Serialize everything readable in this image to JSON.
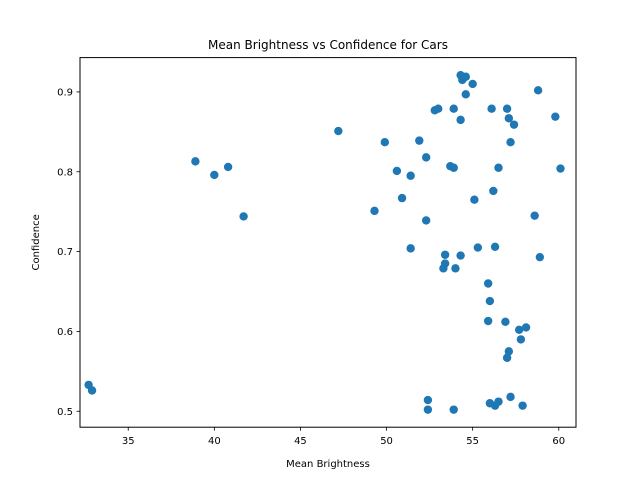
{
  "chart_data": {
    "type": "scatter",
    "title": "Mean Brightness vs Confidence for Cars",
    "xlabel": "Mean Brightness",
    "ylabel": "Confidence",
    "xlim": [
      32.2,
      61.0
    ],
    "ylim": [
      0.48,
      0.943
    ],
    "xticks": [
      35,
      40,
      45,
      50,
      55,
      60
    ],
    "yticks": [
      0.5,
      0.6,
      0.7,
      0.8,
      0.9
    ],
    "ytick_labels": [
      "0.5",
      "0.6",
      "0.7",
      "0.8",
      "0.9"
    ],
    "grid": false,
    "legend": null,
    "marker_color": "#1f77b4",
    "points": [
      {
        "x": 32.7,
        "y": 0.533
      },
      {
        "x": 32.9,
        "y": 0.526
      },
      {
        "x": 38.9,
        "y": 0.813
      },
      {
        "x": 40.0,
        "y": 0.796
      },
      {
        "x": 40.8,
        "y": 0.806
      },
      {
        "x": 41.7,
        "y": 0.744
      },
      {
        "x": 47.2,
        "y": 0.851
      },
      {
        "x": 49.3,
        "y": 0.751
      },
      {
        "x": 49.9,
        "y": 0.837
      },
      {
        "x": 50.6,
        "y": 0.801
      },
      {
        "x": 50.9,
        "y": 0.767
      },
      {
        "x": 51.4,
        "y": 0.795
      },
      {
        "x": 51.4,
        "y": 0.704
      },
      {
        "x": 51.9,
        "y": 0.839
      },
      {
        "x": 52.3,
        "y": 0.818
      },
      {
        "x": 52.3,
        "y": 0.739
      },
      {
        "x": 52.4,
        "y": 0.514
      },
      {
        "x": 52.4,
        "y": 0.502
      },
      {
        "x": 52.8,
        "y": 0.877
      },
      {
        "x": 53.0,
        "y": 0.879
      },
      {
        "x": 53.4,
        "y": 0.696
      },
      {
        "x": 53.4,
        "y": 0.685
      },
      {
        "x": 53.3,
        "y": 0.679
      },
      {
        "x": 53.7,
        "y": 0.807
      },
      {
        "x": 53.9,
        "y": 0.805
      },
      {
        "x": 53.9,
        "y": 0.879
      },
      {
        "x": 54.0,
        "y": 0.679
      },
      {
        "x": 53.9,
        "y": 0.502
      },
      {
        "x": 54.3,
        "y": 0.921
      },
      {
        "x": 54.4,
        "y": 0.915
      },
      {
        "x": 54.6,
        "y": 0.919
      },
      {
        "x": 54.3,
        "y": 0.865
      },
      {
        "x": 54.3,
        "y": 0.695
      },
      {
        "x": 54.6,
        "y": 0.897
      },
      {
        "x": 55.0,
        "y": 0.91
      },
      {
        "x": 55.1,
        "y": 0.765
      },
      {
        "x": 55.3,
        "y": 0.705
      },
      {
        "x": 55.9,
        "y": 0.66
      },
      {
        "x": 56.0,
        "y": 0.638
      },
      {
        "x": 55.9,
        "y": 0.613
      },
      {
        "x": 56.0,
        "y": 0.51
      },
      {
        "x": 56.1,
        "y": 0.879
      },
      {
        "x": 56.2,
        "y": 0.776
      },
      {
        "x": 56.3,
        "y": 0.706
      },
      {
        "x": 56.5,
        "y": 0.805
      },
      {
        "x": 56.3,
        "y": 0.507
      },
      {
        "x": 56.5,
        "y": 0.512
      },
      {
        "x": 57.0,
        "y": 0.879
      },
      {
        "x": 57.1,
        "y": 0.867
      },
      {
        "x": 57.2,
        "y": 0.837
      },
      {
        "x": 56.9,
        "y": 0.612
      },
      {
        "x": 57.1,
        "y": 0.575
      },
      {
        "x": 57.0,
        "y": 0.567
      },
      {
        "x": 57.2,
        "y": 0.518
      },
      {
        "x": 57.4,
        "y": 0.859
      },
      {
        "x": 57.7,
        "y": 0.602
      },
      {
        "x": 57.8,
        "y": 0.59
      },
      {
        "x": 57.9,
        "y": 0.507
      },
      {
        "x": 58.1,
        "y": 0.605
      },
      {
        "x": 58.6,
        "y": 0.745
      },
      {
        "x": 58.8,
        "y": 0.902
      },
      {
        "x": 58.9,
        "y": 0.693
      },
      {
        "x": 59.8,
        "y": 0.869
      },
      {
        "x": 60.1,
        "y": 0.804
      }
    ]
  }
}
